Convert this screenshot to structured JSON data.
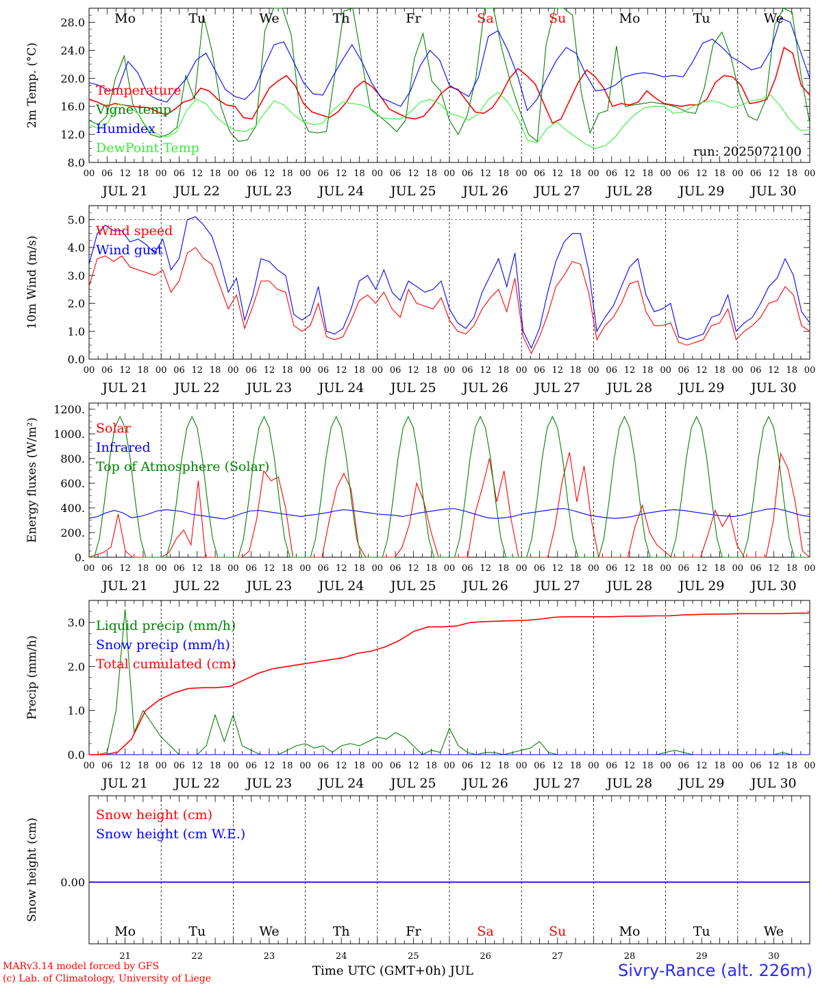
{
  "chart_data": [
    {
      "type": "line",
      "ylabel": "2m Temp. (°C)",
      "ylim": [
        8,
        30
      ],
      "yticks": [
        "8.0",
        "12.0",
        "16.0",
        "20.0",
        "24.0",
        "28.0"
      ],
      "grid": "dashed day separators",
      "legend_position": "top-left",
      "annotation": "run: 2025072100",
      "series": [
        {
          "name": "Temperature",
          "color": "#ff0000",
          "values": [
            17.0,
            16.6,
            16.0,
            16.4,
            16.2,
            16.0,
            15.9,
            15.8,
            15.2,
            14.8,
            15.6,
            16.6,
            17.0,
            18.6,
            18.2,
            17.0,
            16.2,
            16.0,
            14.4,
            14.2,
            16.4,
            18.6,
            19.6,
            20.4,
            19.0,
            16.4,
            15.2,
            14.8,
            14.4,
            15.2,
            16.6,
            18.6,
            19.6,
            18.8,
            17.4,
            15.6,
            15.0,
            14.4,
            14.2,
            14.6,
            16.0,
            17.8,
            18.8,
            18.4,
            16.8,
            15.2,
            15.0,
            15.8,
            17.6,
            20.0,
            21.4,
            20.4,
            19.2,
            16.4,
            13.6,
            14.2,
            16.8,
            19.4,
            21.2,
            20.2,
            18.6,
            16.0,
            16.4,
            16.2,
            16.6,
            18.2,
            17.2,
            16.4,
            16.2,
            16.0,
            16.2,
            16.2,
            17.0,
            19.4,
            20.4,
            20.2,
            19.0,
            16.4,
            16.6,
            17.0,
            20.0,
            24.4,
            23.6,
            19.0,
            17.6
          ]
        },
        {
          "name": "Vigne temp",
          "color": "#008000",
          "values": [
            14.0,
            13.4,
            14.6,
            20.0,
            23.2,
            16.2,
            14.0,
            12.0,
            11.6,
            12.0,
            13.0,
            20.4,
            17.0,
            29.0,
            23.8,
            16.0,
            12.4,
            11.0,
            11.2,
            13.2,
            26.8,
            31.0,
            30.2,
            26.2,
            15.0,
            12.4,
            12.2,
            12.4,
            20.8,
            29.6,
            30.2,
            22.8,
            15.6,
            14.6,
            13.6,
            12.4,
            14.0,
            22.8,
            26.4,
            19.6,
            18.2,
            14.0,
            12.0,
            14.6,
            20.0,
            30.4,
            31.2,
            24.0,
            19.2,
            15.4,
            12.0,
            11.0,
            24.8,
            31.6,
            32.4,
            29.0,
            18.0,
            12.2,
            15.0,
            15.4,
            24.6,
            16.0,
            16.2,
            16.4,
            16.6,
            16.4,
            16.2,
            15.8,
            15.2,
            15.0,
            18.6,
            24.8,
            26.6,
            23.2,
            17.8,
            14.6,
            14.0,
            17.0,
            27.6,
            31.0,
            29.4,
            20.4,
            13.6
          ]
        },
        {
          "name": "Humidex",
          "color": "#0000ff",
          "values": [
            19.4,
            19.0,
            18.2,
            18.6,
            22.4,
            20.8,
            17.8,
            17.0,
            16.6,
            18.4,
            20.0,
            22.6,
            23.6,
            21.0,
            18.4,
            17.4,
            17.0,
            18.4,
            21.8,
            24.8,
            25.2,
            22.4,
            19.4,
            17.8,
            17.6,
            20.2,
            22.6,
            24.8,
            22.4,
            19.4,
            17.2,
            16.6,
            16.0,
            18.2,
            21.8,
            24.0,
            22.6,
            19.0,
            18.2,
            17.4,
            20.2,
            26.0,
            26.8,
            24.0,
            20.4,
            15.4,
            17.0,
            20.0,
            22.6,
            24.4,
            23.6,
            20.6,
            18.2,
            18.4,
            19.0,
            20.2,
            20.6,
            20.8,
            20.6,
            20.2,
            20.4,
            20.2,
            22.4,
            25.0,
            25.6,
            24.4,
            23.0,
            22.2,
            21.2,
            21.6,
            24.0,
            28.6,
            28.0,
            24.0,
            20.0
          ]
        },
        {
          "name": "DewPoint Temp",
          "color": "#33ee33",
          "values": [
            13.4,
            12.8,
            13.8,
            16.4,
            16.0,
            15.0,
            12.8,
            12.0,
            11.6,
            12.4,
            15.4,
            17.0,
            16.4,
            14.6,
            13.4,
            12.6,
            12.4,
            13.0,
            15.0,
            16.8,
            16.2,
            14.8,
            13.8,
            13.4,
            13.6,
            15.4,
            16.6,
            16.4,
            16.2,
            15.6,
            14.4,
            14.2,
            14.2,
            15.2,
            16.6,
            17.0,
            16.4,
            15.0,
            14.6,
            14.0,
            15.0,
            17.0,
            18.0,
            16.6,
            14.4,
            11.2,
            10.8,
            12.8,
            13.8,
            12.6,
            11.6,
            10.6,
            10.0,
            10.4,
            11.6,
            13.4,
            14.8,
            15.8,
            16.0,
            16.0,
            15.0,
            15.2,
            16.0,
            16.6,
            16.8,
            16.4,
            15.8,
            16.2,
            16.8,
            17.0,
            17.6,
            16.0,
            14.0,
            12.6,
            12.6
          ]
        }
      ]
    },
    {
      "type": "line",
      "ylabel": "10m Wind (m/s)",
      "ylim": [
        0,
        5.5
      ],
      "yticks": [
        "0.0",
        "1.0",
        "2.0",
        "3.0",
        "4.0",
        "5.0"
      ],
      "legend_position": "top-left",
      "series": [
        {
          "name": "Wind speed",
          "color": "#ff0000",
          "values": [
            2.6,
            3.6,
            3.7,
            3.5,
            3.7,
            3.3,
            3.2,
            3.1,
            3.0,
            3.2,
            2.4,
            2.8,
            3.8,
            4.0,
            3.6,
            3.4,
            2.6,
            1.8,
            2.3,
            1.1,
            1.9,
            2.8,
            2.8,
            2.5,
            2.4,
            1.2,
            1.0,
            1.2,
            2.0,
            0.8,
            0.7,
            0.8,
            1.4,
            2.1,
            2.3,
            2.0,
            2.4,
            1.8,
            1.5,
            2.5,
            2.0,
            1.9,
            1.8,
            2.2,
            1.4,
            1.0,
            0.9,
            1.2,
            1.8,
            2.2,
            2.5,
            1.7,
            2.9,
            0.8,
            0.2,
            0.8,
            1.6,
            2.6,
            3.0,
            3.5,
            3.4,
            2.4,
            0.7,
            1.2,
            1.5,
            2.0,
            2.7,
            2.8,
            1.7,
            1.2,
            1.2,
            1.3,
            0.6,
            0.5,
            0.6,
            0.7,
            1.2,
            1.3,
            1.8,
            0.7,
            1.0,
            1.2,
            1.5,
            2.0,
            2.1,
            2.6,
            2.3,
            1.2,
            1.0
          ]
        },
        {
          "name": "Wind gust",
          "color": "#0000ff",
          "values": [
            3.4,
            4.5,
            4.8,
            4.6,
            4.6,
            4.2,
            4.3,
            4.1,
            3.8,
            4.3,
            3.2,
            3.6,
            5.0,
            5.1,
            4.8,
            4.4,
            3.5,
            2.4,
            2.9,
            1.4,
            2.3,
            3.6,
            3.5,
            3.2,
            3.0,
            1.6,
            1.4,
            1.6,
            2.6,
            1.0,
            0.9,
            1.1,
            1.8,
            2.8,
            3.0,
            2.5,
            3.2,
            2.4,
            2.1,
            2.8,
            2.6,
            2.4,
            2.5,
            2.8,
            1.8,
            1.3,
            1.1,
            1.5,
            2.4,
            3.0,
            3.6,
            2.6,
            3.8,
            1.0,
            0.4,
            1.1,
            2.4,
            3.5,
            4.2,
            4.5,
            4.5,
            3.2,
            1.0,
            1.5,
            1.9,
            2.6,
            3.3,
            3.6,
            2.3,
            1.7,
            1.8,
            2.0,
            0.8,
            0.7,
            0.8,
            0.9,
            1.5,
            1.6,
            2.3,
            1.0,
            1.3,
            1.5,
            2.0,
            2.6,
            2.9,
            3.6,
            3.0,
            1.7,
            1.3
          ]
        }
      ]
    },
    {
      "type": "line",
      "ylabel": "Energy fluxes (W/m²)",
      "ylim": [
        0,
        1250
      ],
      "yticks": [
        "0.",
        "200.",
        "400.",
        "600.",
        "800.",
        "1000.",
        "1200."
      ],
      "legend_position": "top-left",
      "series": [
        {
          "name": "Solar",
          "color": "#ff0000",
          "values": [
            0,
            20,
            40,
            80,
            350,
            50,
            0,
            0,
            0,
            0,
            0,
            40,
            150,
            220,
            100,
            620,
            0,
            0,
            0,
            0,
            0,
            0,
            50,
            300,
            700,
            620,
            650,
            400,
            0,
            0,
            0,
            0,
            0,
            300,
            560,
            680,
            550,
            100,
            0,
            0,
            0,
            0,
            0,
            80,
            270,
            600,
            450,
            200,
            0,
            0,
            0,
            0,
            0,
            350,
            560,
            800,
            450,
            700,
            300,
            0,
            0,
            0,
            0,
            0,
            250,
            620,
            850,
            450,
            740,
            300,
            0,
            0,
            0,
            0,
            0,
            250,
            420,
            200,
            100,
            50,
            0,
            0,
            0,
            0,
            0,
            180,
            380,
            250,
            350,
            100,
            0,
            0,
            0,
            0,
            300,
            840,
            720,
            450,
            50,
            0
          ]
        },
        {
          "name": "Infrared",
          "color": "#0000ff",
          "values": [
            315,
            330,
            360,
            380,
            360,
            320,
            330,
            350,
            375,
            385,
            380,
            370,
            350,
            340,
            330,
            320,
            310,
            330,
            355,
            375,
            380,
            370,
            360,
            350,
            340,
            330,
            340,
            350,
            360,
            375,
            385,
            380,
            370,
            360,
            350,
            345,
            340,
            330,
            345,
            360,
            370,
            380,
            390,
            395,
            380,
            360,
            340,
            320,
            315,
            320,
            330,
            350,
            360,
            370,
            380,
            390,
            395,
            380,
            360,
            340,
            330,
            320,
            315,
            320,
            330,
            345,
            360,
            370,
            380,
            385,
            380,
            370,
            360,
            350,
            340,
            335,
            330,
            340,
            360,
            375,
            390,
            395,
            380,
            360,
            340,
            330
          ]
        },
        {
          "name": "Top of Atmosphere (Solar)",
          "color": "#008000",
          "values": [
            0,
            0,
            150,
            450,
            800,
            1050,
            1140,
            1050,
            800,
            450,
            150,
            0,
            0,
            0,
            0
          ]
        }
      ]
    },
    {
      "type": "line",
      "ylabel": "Precip (mm/h)",
      "ylim": [
        0,
        3.5
      ],
      "yticks": [
        "0.0",
        "1.0",
        "2.0",
        "3.0"
      ],
      "legend_position": "top-left",
      "series": [
        {
          "name": "Liquid precip (mm/h)",
          "color": "#008000",
          "values": [
            0,
            0,
            0.05,
            1.0,
            3.3,
            0.5,
            1.0,
            0.7,
            0.4,
            0.2,
            0,
            0,
            0,
            0.2,
            0.9,
            0.3,
            0.9,
            0.2,
            0.1,
            0,
            0,
            0,
            0.1,
            0.2,
            0.25,
            0.15,
            0.2,
            0.05,
            0.2,
            0.25,
            0.2,
            0.3,
            0.4,
            0.35,
            0.5,
            0.4,
            0.2,
            0,
            0.1,
            0.05,
            0.6,
            0.2,
            0.05,
            0,
            0.05,
            0.05,
            0,
            0.05,
            0.1,
            0.15,
            0.3,
            0.05,
            0,
            0,
            0,
            0,
            0,
            0,
            0,
            0,
            0,
            0,
            0,
            0,
            0.05,
            0.1,
            0.05,
            0,
            0,
            0,
            0,
            0,
            0,
            0,
            0,
            0,
            0,
            0.05,
            0,
            0,
            0
          ]
        },
        {
          "name": "Snow precip (mm/h)",
          "color": "#0000ff",
          "values": [
            0,
            0
          ]
        },
        {
          "name": "Total cumulated (cm)",
          "color": "#ff0000",
          "values": [
            0,
            0,
            0.05,
            0.35,
            1.0,
            1.25,
            1.4,
            1.5,
            1.52,
            1.52,
            1.55,
            1.7,
            1.85,
            1.95,
            2.0,
            2.05,
            2.1,
            2.15,
            2.2,
            2.3,
            2.35,
            2.45,
            2.6,
            2.8,
            2.9,
            2.9,
            2.92,
            3.0,
            3.02,
            3.03,
            3.04,
            3.05,
            3.08,
            3.12,
            3.13,
            3.13,
            3.13,
            3.13,
            3.14,
            3.14,
            3.15,
            3.15,
            3.17,
            3.18,
            3.19,
            3.19,
            3.2,
            3.2,
            3.2,
            3.2,
            3.21,
            3.21
          ]
        }
      ]
    },
    {
      "type": "line",
      "ylabel": "Snow height (cm)",
      "yticks": [
        "0.00"
      ],
      "legend_position": "top-left",
      "series": [
        {
          "name": "Snow height (cm)",
          "color": "#ff0000",
          "values": [
            0,
            0
          ]
        },
        {
          "name": "Snow height (cm W.E.)",
          "color": "#0000ff",
          "values": [
            0,
            0
          ]
        }
      ]
    }
  ],
  "axis": {
    "hour_ticks": [
      "00",
      "06",
      "12",
      "18"
    ],
    "final_hour_tick": "00",
    "date_labels": [
      "JUL 21",
      "JUL 22",
      "JUL 23",
      "JUL 24",
      "JUL 25",
      "JUL 26",
      "JUL 27",
      "JUL 28",
      "JUL 29",
      "JUL 30"
    ],
    "weekdays": [
      "Mo",
      "Tu",
      "We",
      "Th",
      "Fr",
      "Sa",
      "Su",
      "Mo",
      "Tu",
      "We"
    ],
    "weekday_colors": [
      "#000000",
      "#000000",
      "#000000",
      "#000000",
      "#000000",
      "#ff0000",
      "#ff0000",
      "#000000",
      "#000000",
      "#000000"
    ],
    "day_numbers": [
      "21",
      "22",
      "23",
      "24",
      "25",
      "26",
      "27",
      "28",
      "29",
      "30"
    ]
  },
  "footer": {
    "credit_line1": "MARv3.14 model forced by GFS",
    "credit_line2": "(c) Lab. of Climatology, University of Liege",
    "xlabel": "Time UTC (GMT+0h) JUL",
    "station": "Sivry-Rance (alt. 226m)"
  }
}
